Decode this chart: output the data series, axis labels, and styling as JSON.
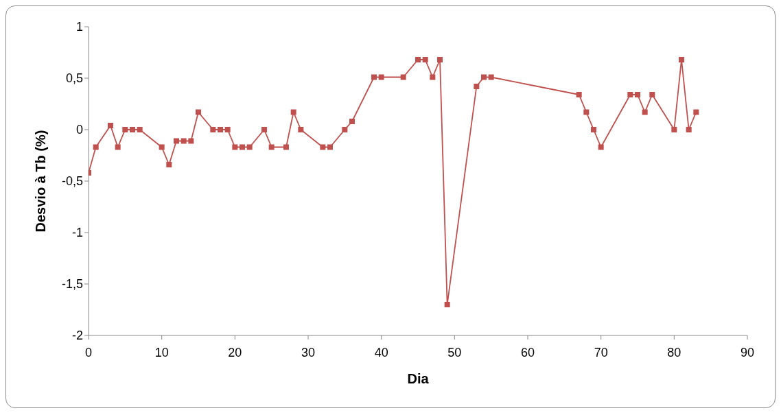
{
  "chart_data": {
    "type": "line",
    "xlabel": "Dia",
    "ylabel": "Desvio à Tb (%)",
    "x": [
      0,
      1,
      3,
      4,
      5,
      6,
      7,
      10,
      11,
      12,
      13,
      14,
      15,
      17,
      18,
      19,
      20,
      21,
      22,
      24,
      25,
      27,
      28,
      29,
      32,
      33,
      35,
      36,
      39,
      40,
      43,
      45,
      46,
      47,
      48,
      49,
      53,
      54,
      55,
      67,
      68,
      69,
      70,
      74,
      75,
      76,
      77,
      80,
      81,
      82,
      83
    ],
    "series": [
      {
        "color": "#c0504d",
        "values": [
          -0.42,
          -0.17,
          0.04,
          -0.17,
          0,
          0,
          0,
          -0.17,
          -0.34,
          -0.11,
          -0.11,
          -0.11,
          0.17,
          0,
          0,
          0,
          -0.17,
          -0.17,
          -0.17,
          0,
          -0.17,
          -0.17,
          0.17,
          0,
          -0.17,
          -0.17,
          0,
          0.08,
          0.51,
          0.51,
          0.51,
          0.68,
          0.68,
          0.51,
          0.68,
          -1.7,
          0.42,
          0.51,
          0.51,
          0.34,
          0.17,
          0,
          -0.17,
          0.34,
          0.34,
          0.17,
          0.34,
          0,
          0.68,
          0,
          0.17
        ]
      }
    ],
    "xlim": [
      0,
      90
    ],
    "xticks": [
      0,
      10,
      20,
      30,
      40,
      50,
      60,
      70,
      80,
      90
    ],
    "ylim": [
      -2,
      1
    ],
    "yticks": [
      {
        "value": -2,
        "label": "-2"
      },
      {
        "value": -1.5,
        "label": "-1,5"
      },
      {
        "value": -1,
        "label": "-1"
      },
      {
        "value": -0.5,
        "label": "-0,5"
      },
      {
        "value": 0,
        "label": "0"
      },
      {
        "value": 0.5,
        "label": "0,5"
      },
      {
        "value": 1,
        "label": "1"
      }
    ],
    "grid": false,
    "legend": false,
    "marker": "square",
    "line_style": "solid"
  }
}
